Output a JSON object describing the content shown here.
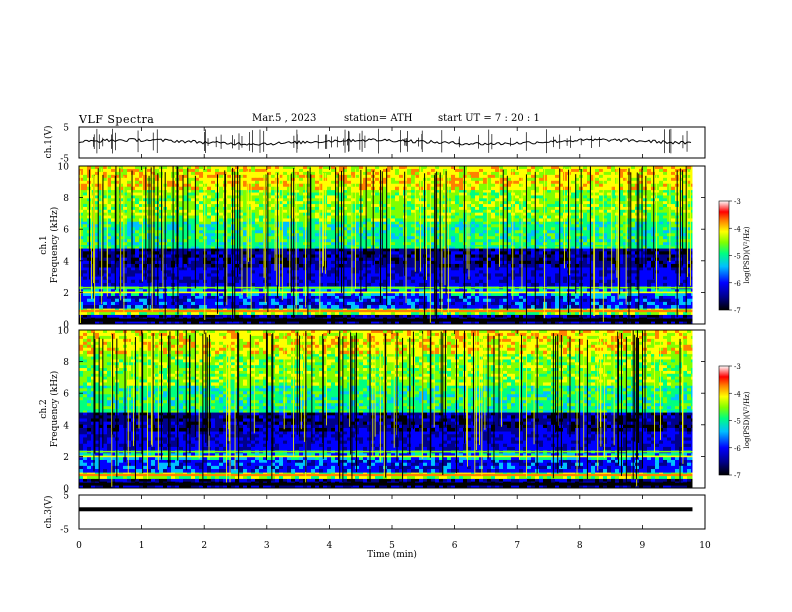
{
  "header": {
    "title": "VLF  Spectra",
    "date": "Mar.5  , 2023",
    "station": "station= ATH",
    "start": "start  UT  =   7  : 20 : 1"
  },
  "chart_data": [
    {
      "type": "line",
      "name": "ch1-waveform",
      "ylabel": "ch.1(V)",
      "ylim": [
        -5,
        5
      ],
      "yticks": [
        "5",
        "-5"
      ],
      "xlim": [
        0,
        10
      ],
      "approx_level": 0.2,
      "description_series": "noisy waveform near 0 V with frequent spikes"
    },
    {
      "type": "heatmap",
      "name": "ch1-spectrogram",
      "ylabel": "ch.1\nFrequency  (kHz)",
      "ylim": [
        0,
        10
      ],
      "yticks": [
        "0",
        "2",
        "4",
        "6",
        "8",
        "10"
      ],
      "xlim": [
        0,
        9.8
      ],
      "colorbar": {
        "label": "log(PSD)(V²/Hz)",
        "range": [
          -7,
          -3
        ],
        "ticks": [
          "-3",
          "-4",
          "-5",
          "-6",
          "-7"
        ]
      }
    },
    {
      "type": "heatmap",
      "name": "ch2-spectrogram",
      "ylabel": "ch.2\nFrequency  (kHz)",
      "ylim": [
        0,
        10
      ],
      "yticks": [
        "0",
        "2",
        "4",
        "6",
        "8",
        "10"
      ],
      "xlim": [
        0,
        9.8
      ],
      "colorbar": {
        "label": "log(PSD)(V²/Hz)",
        "range": [
          -7,
          -3
        ],
        "ticks": [
          "-3",
          "-4",
          "-5",
          "-6",
          "-7"
        ]
      }
    },
    {
      "type": "line",
      "name": "ch3-waveform",
      "ylabel": "ch.3(V)",
      "ylim": [
        -5,
        5
      ],
      "yticks": [
        "5",
        "-5"
      ],
      "xlim": [
        0,
        10
      ],
      "approx_level": 0.8
    }
  ],
  "xaxis": {
    "label": "Time  (min)",
    "ticks": [
      "0",
      "1",
      "2",
      "3",
      "4",
      "5",
      "6",
      "7",
      "8",
      "9",
      "10"
    ],
    "range": [
      0,
      10
    ]
  },
  "colors": {
    "colormap": [
      "#000000",
      "#00008b",
      "#0000ff",
      "#00c0ff",
      "#00ff80",
      "#80ff00",
      "#ffff00",
      "#ff8000",
      "#ff0000",
      "#ffffff"
    ]
  }
}
